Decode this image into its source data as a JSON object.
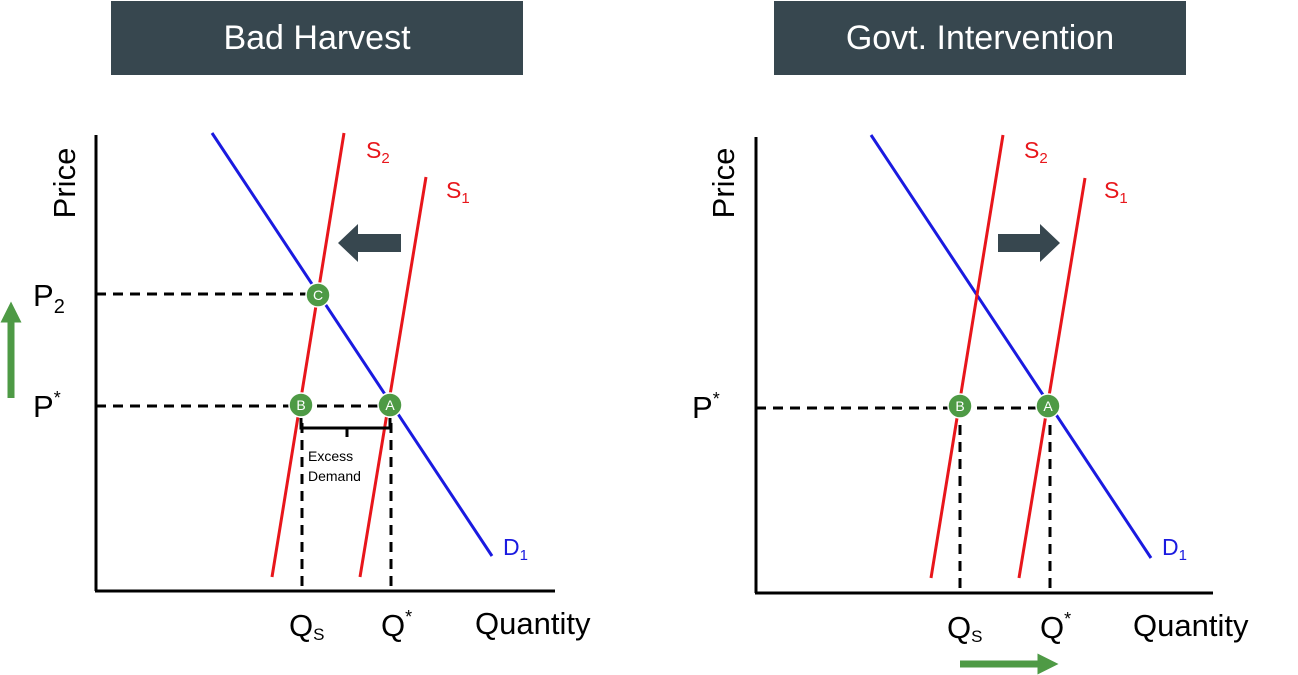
{
  "panels": [
    {
      "title": "Bad Harvest",
      "y_axis_label": "Price",
      "x_axis_label": "Quantity",
      "curves": [
        {
          "base": "S",
          "sub": "2"
        },
        {
          "base": "S",
          "sub": "1"
        },
        {
          "base": "D",
          "sub": "1"
        }
      ],
      "points": [
        "C",
        "B",
        "A"
      ],
      "price_labels": [
        {
          "base": "P",
          "sub": "2"
        },
        {
          "base": "P",
          "sup": "*"
        }
      ],
      "quantity_labels": [
        {
          "base": "Q",
          "sub": "S"
        },
        {
          "base": "Q",
          "sup": "*"
        }
      ],
      "note": [
        "Excess",
        "Demand"
      ]
    },
    {
      "title": "Govt. Intervention",
      "y_axis_label": "Price",
      "x_axis_label": "Quantity",
      "curves": [
        {
          "base": "S",
          "sub": "2"
        },
        {
          "base": "S",
          "sub": "1"
        },
        {
          "base": "D",
          "sub": "1"
        }
      ],
      "points": [
        "B",
        "A"
      ],
      "price_labels": [
        {
          "base": "P",
          "sup": "*"
        }
      ],
      "quantity_labels": [
        {
          "base": "Q",
          "sub": "S"
        },
        {
          "base": "Q",
          "sup": "*"
        }
      ]
    }
  ]
}
